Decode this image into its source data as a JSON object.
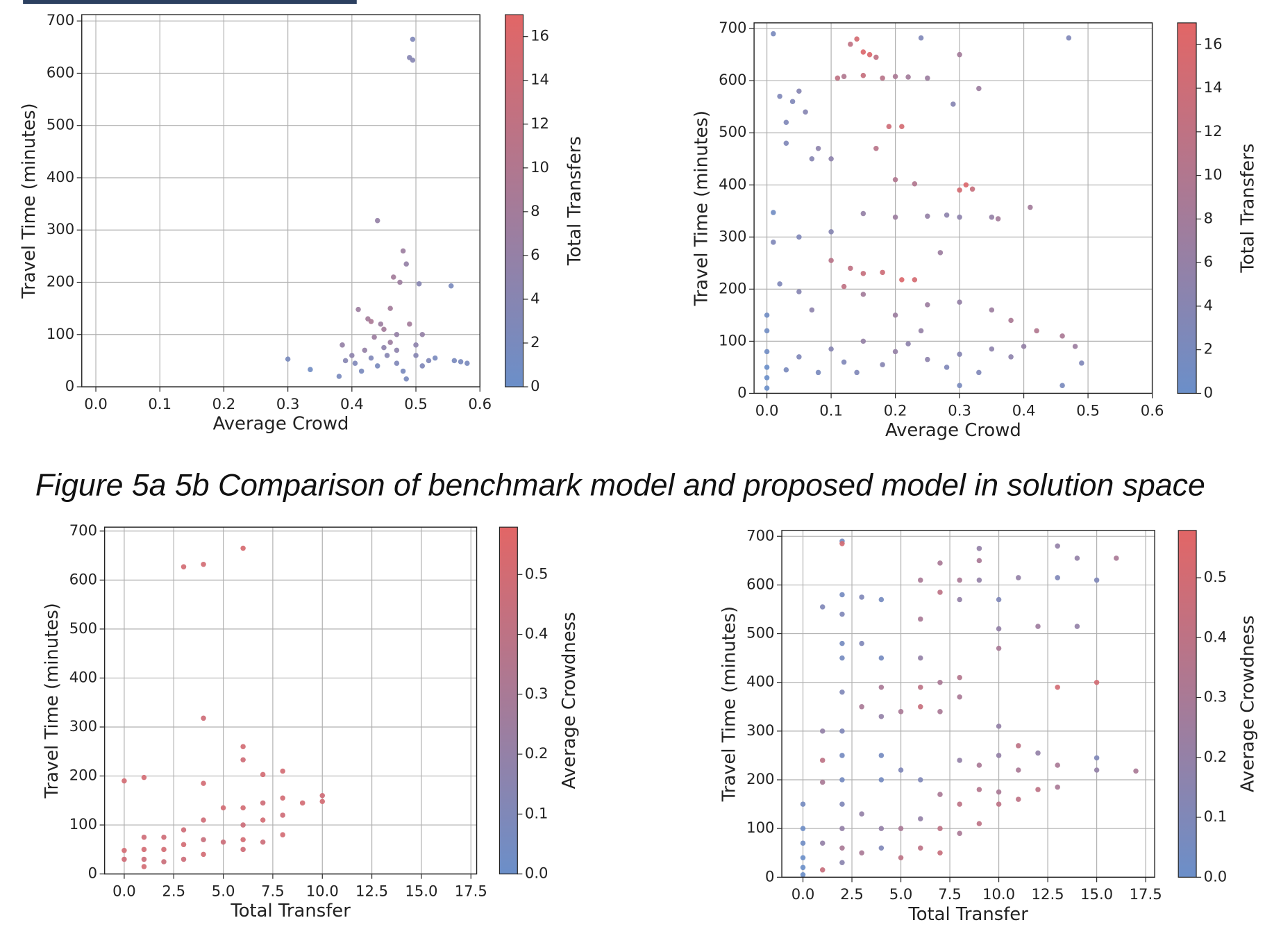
{
  "caption": "Figure 5a 5b Comparison of benchmark model and proposed model in solution space",
  "chart_data": [
    {
      "type": "scatter",
      "x_label": "Average Crowd",
      "y_label": "Travel Time (minutes)",
      "colorbar_label": "Total Transfers",
      "xlim": [
        -0.022,
        0.6
      ],
      "ylim": [
        0,
        712
      ],
      "xticks": [
        {
          "value": 0,
          "label": "0.0"
        },
        0.1,
        0.2,
        0.3,
        0.4,
        0.5,
        0.6
      ],
      "yticks": [
        0,
        100,
        200,
        300,
        400,
        500,
        600,
        700
      ],
      "clim": [
        0,
        17
      ],
      "cticks": [
        0,
        2,
        4,
        6,
        8,
        10,
        12,
        14,
        16
      ],
      "colormap": [
        "#6b8fc9",
        "#e26666"
      ],
      "grid": true,
      "x": [
        0.3,
        0.335,
        0.38,
        0.385,
        0.39,
        0.4,
        0.405,
        0.41,
        0.415,
        0.42,
        0.425,
        0.43,
        0.435,
        0.44,
        0.44,
        0.445,
        0.45,
        0.455,
        0.46,
        0.465,
        0.47,
        0.47,
        0.475,
        0.48,
        0.48,
        0.485,
        0.485,
        0.49,
        0.495,
        0.495,
        0.49,
        0.5,
        0.505,
        0.51,
        0.52,
        0.53,
        0.555,
        0.56,
        0.57,
        0.58,
        0.46,
        0.45,
        0.43,
        0.47,
        0.5,
        0.51
      ],
      "values": [
        53,
        33,
        20,
        80,
        50,
        60,
        45,
        148,
        30,
        70,
        130,
        55,
        95,
        318,
        40,
        120,
        75,
        60,
        150,
        210,
        100,
        45,
        200,
        260,
        30,
        235,
        15,
        630,
        625,
        665,
        120,
        80,
        197,
        100,
        50,
        55,
        193,
        50,
        48,
        45,
        85,
        110,
        125,
        70,
        60,
        40
      ],
      "color_values": [
        2,
        1,
        2,
        6,
        4,
        5,
        3,
        7,
        2,
        6,
        8,
        3,
        7,
        6,
        2,
        7,
        5,
        4,
        8,
        8,
        6,
        3,
        7,
        7,
        2,
        6,
        2,
        4,
        4,
        3,
        8,
        5,
        4,
        6,
        3,
        2,
        2,
        2,
        2,
        2,
        7,
        8,
        9,
        5,
        4,
        3
      ]
    },
    {
      "type": "scatter",
      "x_label": "Average Crowd",
      "y_label": "Travel Time (minutes)",
      "colorbar_label": "Total Transfers",
      "xlim": [
        -0.02,
        0.6
      ],
      "ylim": [
        0,
        711
      ],
      "xticks": [
        {
          "value": 0,
          "label": "0.0"
        },
        0.1,
        0.2,
        0.3,
        0.4,
        0.5,
        0.6
      ],
      "yticks": [
        0,
        100,
        200,
        300,
        400,
        500,
        600,
        700
      ],
      "clim": [
        0,
        17
      ],
      "cticks": [
        0,
        2,
        4,
        6,
        8,
        10,
        12,
        14,
        16
      ],
      "colormap": [
        "#6b8fc9",
        "#e26666"
      ],
      "grid": true,
      "x": [
        0,
        0,
        0,
        0,
        0,
        0,
        0.01,
        0.01,
        0.01,
        0.02,
        0.03,
        0.03,
        0.04,
        0.05,
        0.06,
        0.07,
        0.08,
        0.1,
        0.11,
        0.12,
        0.13,
        0.14,
        0.15,
        0.16,
        0.17,
        0.15,
        0.18,
        0.2,
        0.22,
        0.25,
        0.24,
        0.3,
        0.29,
        0.33,
        0.19,
        0.21,
        0.17,
        0.2,
        0.23,
        0.3,
        0.31,
        0.32,
        0.47,
        0.41,
        0.15,
        0.2,
        0.25,
        0.28,
        0.3,
        0.35,
        0.1,
        0.13,
        0.15,
        0.18,
        0.21,
        0.23,
        0.12,
        0.07,
        0.02,
        0.05,
        0.15,
        0.25,
        0.3,
        0.35,
        0.38,
        0.42,
        0.46,
        0.48,
        0.49,
        0.46,
        0.4,
        0.35,
        0.3,
        0.25,
        0.2,
        0.15,
        0.1,
        0.05,
        0.03,
        0.08,
        0.12,
        0.18,
        0.22,
        0.28,
        0.33,
        0.38,
        0.3,
        0.14,
        0.24,
        0.2,
        0.1,
        0.05,
        0.36,
        0.27
      ],
      "values": [
        10,
        30,
        50,
        80,
        120,
        150,
        690,
        347,
        290,
        570,
        520,
        480,
        560,
        580,
        540,
        450,
        470,
        450,
        605,
        608,
        670,
        680,
        655,
        650,
        645,
        610,
        605,
        608,
        607,
        605,
        682,
        650,
        555,
        585,
        512,
        512,
        470,
        410,
        402,
        390,
        400,
        392,
        682,
        357,
        345,
        338,
        340,
        342,
        338,
        338,
        255,
        240,
        230,
        232,
        218,
        218,
        205,
        160,
        210,
        195,
        190,
        170,
        175,
        160,
        140,
        120,
        110,
        90,
        58,
        15,
        90,
        85,
        75,
        65,
        80,
        100,
        85,
        70,
        45,
        40,
        60,
        55,
        95,
        50,
        40,
        70,
        15,
        40,
        120,
        150,
        310,
        300,
        335,
        270
      ],
      "color_values": [
        0,
        0,
        0,
        1,
        1,
        1,
        2,
        1,
        3,
        3,
        3,
        3,
        3,
        4,
        4,
        4,
        5,
        5,
        12,
        10,
        12,
        15,
        16,
        16,
        12,
        13,
        11,
        9,
        8,
        7,
        3,
        8,
        4,
        7,
        14,
        15,
        11,
        10,
        10,
        15,
        16,
        13,
        3,
        8,
        6,
        7,
        6,
        5,
        5,
        6,
        11,
        12,
        13,
        14,
        16,
        15,
        12,
        5,
        3,
        4,
        8,
        7,
        6,
        7,
        9,
        10,
        9,
        7,
        3,
        2,
        6,
        5,
        4,
        5,
        6,
        6,
        4,
        3,
        2,
        2,
        3,
        4,
        5,
        3,
        3,
        5,
        2,
        3,
        6,
        7,
        4,
        3,
        8,
        7
      ]
    },
    {
      "type": "scatter",
      "x_label": "Total Transfer",
      "y_label": "Travel Time (minutes)",
      "colorbar_label": "Average Crowdness",
      "xlim": [
        -0.99,
        17.79
      ],
      "ylim": [
        0,
        708
      ],
      "xticks": [
        {
          "value": 0,
          "label": "0.0"
        },
        2.5,
        {
          "value": 5,
          "label": "5.0"
        },
        7.5,
        {
          "value": 10,
          "label": "10.0"
        },
        12.5,
        {
          "value": 15,
          "label": "15.0"
        },
        17.5
      ],
      "yticks": [
        0,
        100,
        200,
        300,
        400,
        500,
        600,
        700
      ],
      "clim": [
        0,
        0.579
      ],
      "cticks": [
        {
          "value": 0,
          "label": "0.0"
        },
        0.1,
        0.2,
        0.3,
        0.4,
        0.5
      ],
      "colormap": [
        "#6b8fc9",
        "#e26666"
      ],
      "grid": true,
      "x": [
        0,
        0,
        0,
        1,
        1,
        1,
        1,
        1,
        2,
        2,
        2,
        3,
        3,
        3,
        3,
        4,
        4,
        4,
        4,
        4,
        4,
        5,
        5,
        6,
        6,
        6,
        6,
        6,
        6,
        6,
        7,
        7,
        7,
        7,
        8,
        8,
        8,
        8,
        9,
        10,
        10
      ],
      "values": [
        190,
        48,
        30,
        197,
        75,
        50,
        30,
        15,
        75,
        50,
        25,
        627,
        90,
        60,
        30,
        632,
        318,
        185,
        110,
        70,
        40,
        135,
        65,
        665,
        260,
        233,
        135,
        100,
        70,
        50,
        203,
        145,
        110,
        65,
        210,
        155,
        120,
        80,
        145,
        160,
        148
      ],
      "color_values": [
        0.5,
        0.5,
        0.48,
        0.5,
        0.48,
        0.5,
        0.47,
        0.5,
        0.48,
        0.5,
        0.46,
        0.5,
        0.48,
        0.5,
        0.47,
        0.5,
        0.48,
        0.5,
        0.48,
        0.45,
        0.5,
        0.5,
        0.47,
        0.52,
        0.5,
        0.48,
        0.5,
        0.47,
        0.5,
        0.48,
        0.5,
        0.48,
        0.5,
        0.47,
        0.5,
        0.5,
        0.48,
        0.5,
        0.5,
        0.48,
        0.5
      ]
    },
    {
      "type": "scatter",
      "x_label": "Total Transfer",
      "y_label": "Travel Time (minutes)",
      "colorbar_label": "Average Crowdness",
      "xlim": [
        -1.08,
        17.96
      ],
      "ylim": [
        0,
        712
      ],
      "xticks": [
        {
          "value": 0,
          "label": "0.0"
        },
        2.5,
        {
          "value": 5,
          "label": "5.0"
        },
        7.5,
        {
          "value": 10,
          "label": "10.0"
        },
        12.5,
        {
          "value": 15,
          "label": "15.0"
        },
        17.5
      ],
      "yticks": [
        0,
        100,
        200,
        300,
        400,
        500,
        600,
        700
      ],
      "clim": [
        0,
        0.579
      ],
      "cticks": [
        {
          "value": 0,
          "label": "0.0"
        },
        0.1,
        0.2,
        0.3,
        0.4,
        0.5
      ],
      "colormap": [
        "#6b8fc9",
        "#e26666"
      ],
      "grid": true,
      "x": [
        0,
        0,
        0,
        0,
        0,
        0,
        1,
        1,
        1,
        1,
        1,
        1,
        2,
        2,
        2,
        2,
        2,
        2,
        2,
        2,
        2,
        2,
        2,
        2,
        2,
        2,
        3,
        3,
        3,
        3,
        3,
        4,
        4,
        4,
        4,
        4,
        4,
        4,
        4,
        5,
        5,
        5,
        5,
        6,
        6,
        6,
        6,
        6,
        6,
        6,
        6,
        7,
        7,
        7,
        7,
        7,
        7,
        7,
        8,
        8,
        8,
        8,
        8,
        8,
        8,
        9,
        9,
        9,
        9,
        9,
        9,
        10,
        10,
        10,
        10,
        10,
        10,
        10,
        11,
        11,
        11,
        11,
        12,
        12,
        12,
        13,
        13,
        13,
        13,
        13,
        14,
        14,
        15,
        15,
        15,
        15,
        16,
        17
      ],
      "values": [
        150,
        100,
        70,
        40,
        20,
        5,
        555,
        300,
        240,
        195,
        70,
        15,
        690,
        685,
        580,
        540,
        480,
        450,
        380,
        300,
        250,
        200,
        150,
        100,
        60,
        30,
        575,
        480,
        350,
        130,
        50,
        570,
        450,
        390,
        330,
        250,
        200,
        100,
        60,
        340,
        220,
        100,
        40,
        610,
        530,
        450,
        390,
        350,
        200,
        120,
        60,
        645,
        585,
        400,
        340,
        170,
        100,
        50,
        610,
        570,
        410,
        370,
        240,
        150,
        90,
        675,
        650,
        610,
        230,
        180,
        110,
        570,
        510,
        470,
        310,
        250,
        175,
        150,
        615,
        270,
        220,
        160,
        515,
        255,
        180,
        680,
        615,
        390,
        230,
        185,
        655,
        515,
        610,
        400,
        245,
        220,
        655,
        218
      ],
      "color_values": [
        0.05,
        0.02,
        0.03,
        0,
        0,
        0,
        0.1,
        0.2,
        0.4,
        0.3,
        0.2,
        0.45,
        0.05,
        0.5,
        0.05,
        0.1,
        0.05,
        0.05,
        0.1,
        0.1,
        0.05,
        0.05,
        0.1,
        0.2,
        0.3,
        0.15,
        0.1,
        0.1,
        0.3,
        0.2,
        0.3,
        0.05,
        0.05,
        0.3,
        0.2,
        0.05,
        0.05,
        0.2,
        0.1,
        0.3,
        0.1,
        0.3,
        0.4,
        0.3,
        0.3,
        0.2,
        0.4,
        0.45,
        0.1,
        0.2,
        0.4,
        0.3,
        0.4,
        0.3,
        0.3,
        0.3,
        0.4,
        0.45,
        0.3,
        0.2,
        0.35,
        0.3,
        0.2,
        0.4,
        0.3,
        0.2,
        0.3,
        0.2,
        0.3,
        0.35,
        0.4,
        0.1,
        0.2,
        0.3,
        0.2,
        0.2,
        0.3,
        0.4,
        0.2,
        0.4,
        0.3,
        0.4,
        0.25,
        0.2,
        0.4,
        0.2,
        0.1,
        0.5,
        0.3,
        0.3,
        0.2,
        0.2,
        0.1,
        0.5,
        0.1,
        0.2,
        0.3,
        0.3
      ]
    }
  ]
}
